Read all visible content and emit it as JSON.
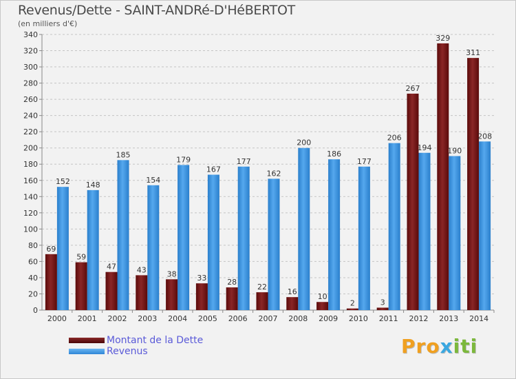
{
  "header": {
    "title": "Revenus/Dette - SAINT-ANDRé-D'HéBERTOT",
    "subtitle": "(en milliers d'€)"
  },
  "chart_data": {
    "type": "bar",
    "title": "Revenus/Dette - SAINT-ANDRé-D'HéBERTOT",
    "ylabel": "(en milliers d'€)",
    "xlabel": "",
    "ylim": [
      0,
      340
    ],
    "yticks": [
      0,
      20,
      40,
      60,
      80,
      100,
      120,
      140,
      160,
      180,
      200,
      220,
      240,
      260,
      280,
      300,
      320,
      340
    ],
    "grid": "horizontal",
    "legend_position": "bottom-left",
    "categories": [
      "2000",
      "2001",
      "2002",
      "2003",
      "2004",
      "2005",
      "2006",
      "2007",
      "2008",
      "2009",
      "2010",
      "2011",
      "2012",
      "2013",
      "2014"
    ],
    "series": [
      {
        "name": "Montant de la Dette",
        "color": "#7b1a1a",
        "values": [
          69,
          59,
          47,
          43,
          38,
          33,
          28,
          22,
          16,
          10,
          2,
          3,
          267,
          329,
          311
        ]
      },
      {
        "name": "Revenus",
        "color": "#3d95df",
        "values": [
          152,
          148,
          185,
          154,
          179,
          167,
          177,
          162,
          200,
          186,
          177,
          206,
          194,
          190,
          208
        ]
      }
    ]
  },
  "legend": {
    "items": [
      {
        "label": "Montant de la Dette",
        "color": "#6a1010"
      },
      {
        "label": "Revenus",
        "color": "#3d95df"
      }
    ]
  },
  "logo": {
    "part1": "Pro",
    "part2": "x",
    "part3": "iti"
  }
}
